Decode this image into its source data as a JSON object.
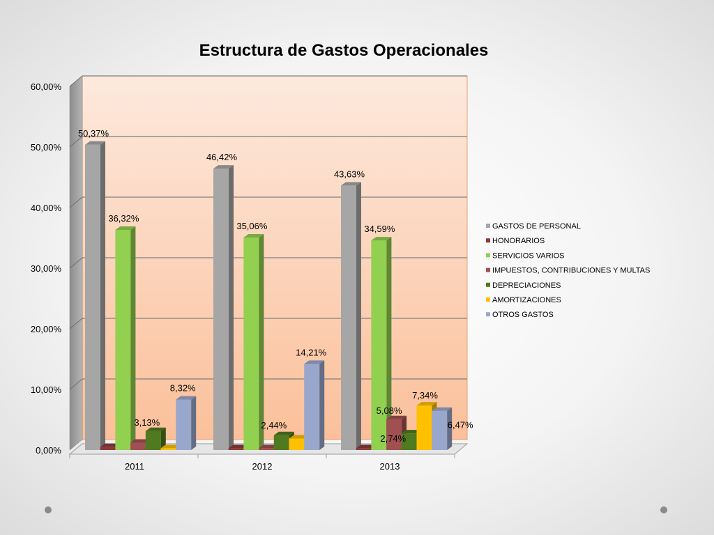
{
  "chart_data": {
    "type": "bar",
    "title": "Estructura de Gastos Operacionales",
    "xlabel": "",
    "ylabel": "",
    "ylim": [
      0,
      60
    ],
    "yticks": [
      "0,00%",
      "10,00%",
      "20,00%",
      "30,00%",
      "40,00%",
      "50,00%",
      "60,00%"
    ],
    "categories": [
      "2011",
      "2012",
      "2013"
    ],
    "grid": true,
    "legend_position": "right",
    "style": "3d-clustered-column",
    "series": [
      {
        "name": "GASTOS DE PERSONAL",
        "color": "#a6a6a6",
        "values": [
          50.37,
          46.42,
          43.63
        ],
        "labels": [
          "50,37%",
          "46,42%",
          "43,63%"
        ]
      },
      {
        "name": "HONORARIOS",
        "color": "#8b3a3a",
        "values": [
          0.5,
          0.3,
          0.3
        ],
        "labels": [
          "",
          "",
          ""
        ]
      },
      {
        "name": "SERVICIOS VARIOS",
        "color": "#92d050",
        "values": [
          36.32,
          35.06,
          34.59
        ],
        "labels": [
          "36,32%",
          "35,06%",
          "34,59%"
        ]
      },
      {
        "name": "IMPUESTOS, CONTRIBUCIONES Y MULTAS",
        "color": "#a05050",
        "values": [
          1.2,
          0.3,
          5.08
        ],
        "labels": [
          "",
          "",
          "5,08%"
        ]
      },
      {
        "name": "DEPRECIACIONES",
        "color": "#4f7a1f",
        "values": [
          3.13,
          2.44,
          2.74
        ],
        "labels": [
          "3,13%",
          "2,44%",
          "2,74%"
        ]
      },
      {
        "name": "AMORTIZACIONES",
        "color": "#ffc000",
        "values": [
          0.3,
          1.9,
          7.34
        ],
        "labels": [
          "",
          "",
          "7,34%"
        ]
      },
      {
        "name": "OTROS GASTOS",
        "color": "#9aa7cc",
        "values": [
          8.32,
          14.21,
          6.47
        ],
        "labels": [
          "8,32%",
          "14,21%",
          "6,47%"
        ]
      }
    ]
  }
}
